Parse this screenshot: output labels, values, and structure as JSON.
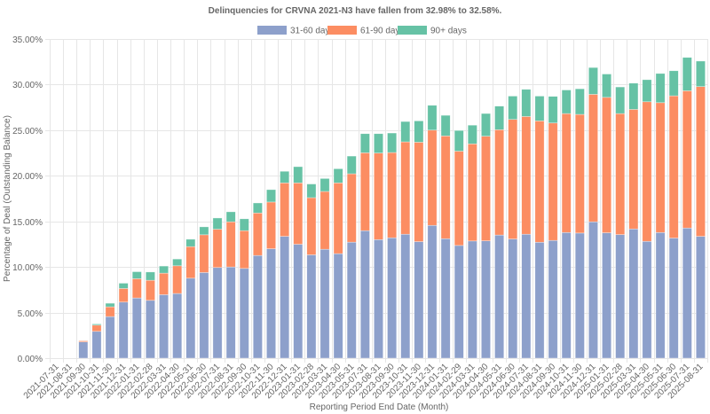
{
  "chart_data": {
    "type": "bar",
    "stacked": true,
    "title": "Delinquencies for CRVNA 2021-N3 have fallen from 32.98% to 32.58%.",
    "xlabel": "Reporting Period End Date (Month)",
    "ylabel": "Percentage of Deal (Outstanding Balance)",
    "ylim": [
      0,
      35
    ],
    "yticks": [
      "0.00%",
      "5.00%",
      "10.00%",
      "15.00%",
      "20.00%",
      "25.00%",
      "30.00%",
      "35.00%"
    ],
    "ytick_values": [
      0,
      5,
      10,
      15,
      20,
      25,
      30,
      35
    ],
    "grid": true,
    "legend_position": "top-center",
    "categories": [
      "2021-07-31",
      "2021-08-31",
      "2021-09-30",
      "2021-10-31",
      "2021-11-30",
      "2021-12-31",
      "2022-01-31",
      "2022-02-28",
      "2022-03-31",
      "2022-04-30",
      "2022-05-31",
      "2022-06-30",
      "2022-07-31",
      "2022-08-31",
      "2022-09-30",
      "2022-10-31",
      "2022-11-30",
      "2022-12-31",
      "2023-01-31",
      "2023-02-28",
      "2023-03-31",
      "2023-04-30",
      "2023-05-31",
      "2023-07-31",
      "2023-08-31",
      "2023-09-30",
      "2023-10-31",
      "2023-11-30",
      "2023-12-31",
      "2024-01-31",
      "2024-02-29",
      "2024-03-31",
      "2024-04-30",
      "2024-05-31",
      "2024-06-30",
      "2024-07-31",
      "2024-08-31",
      "2024-09-30",
      "2024-10-31",
      "2024-11-30",
      "2024-12-31",
      "2025-01-31",
      "2025-02-28",
      "2025-03-31",
      "2025-04-30",
      "2025-05-31",
      "2025-06-30",
      "2025-07-31",
      "2025-08-31"
    ],
    "series": [
      {
        "name": "31-60 days",
        "color": "#8da0cb",
        "values": [
          null,
          null,
          1.78,
          2.94,
          4.56,
          6.15,
          6.6,
          6.34,
          6.96,
          7.09,
          8.77,
          9.39,
          9.94,
          10.0,
          9.84,
          11.26,
          12.0,
          13.36,
          12.49,
          11.33,
          11.94,
          11.46,
          12.72,
          13.98,
          13.0,
          13.2,
          13.59,
          12.78,
          14.56,
          13.1,
          12.36,
          12.85,
          12.87,
          13.5,
          13.07,
          13.59,
          12.71,
          12.91,
          13.78,
          13.72,
          14.95,
          13.75,
          13.55,
          14.17,
          12.81,
          13.78,
          13.17,
          14.27,
          13.36
        ]
      },
      {
        "name": "61-90 days",
        "color": "#fc8d62",
        "values": [
          null,
          null,
          0.13,
          0.68,
          1.07,
          1.49,
          2.11,
          2.2,
          2.36,
          3.04,
          3.46,
          4.14,
          4.2,
          4.95,
          4.14,
          4.66,
          5.12,
          5.86,
          6.73,
          6.27,
          6.34,
          7.76,
          7.5,
          8.54,
          9.49,
          9.35,
          10.13,
          10.9,
          10.45,
          11.27,
          10.34,
          10.65,
          11.47,
          11.55,
          13.11,
          12.91,
          13.31,
          12.88,
          13.04,
          13.01,
          13.98,
          14.85,
          13.27,
          13.11,
          15.31,
          14.24,
          15.6,
          15.05,
          16.42
        ]
      },
      {
        "name": "90+ days",
        "color": "#66c2a5",
        "values": [
          null,
          null,
          0.01,
          0.13,
          0.39,
          0.58,
          0.77,
          0.91,
          0.78,
          0.74,
          0.81,
          0.87,
          1.23,
          1.1,
          1.3,
          1.1,
          1.36,
          1.27,
          1.78,
          1.5,
          1.42,
          1.55,
          1.94,
          2.1,
          2.13,
          2.14,
          2.23,
          2.34,
          2.72,
          2.26,
          2.27,
          2.05,
          2.49,
          2.59,
          2.56,
          2.98,
          2.72,
          2.92,
          2.59,
          2.81,
          2.94,
          2.56,
          2.92,
          2.88,
          2.42,
          3.2,
          2.75,
          3.66,
          2.8
        ]
      }
    ]
  }
}
